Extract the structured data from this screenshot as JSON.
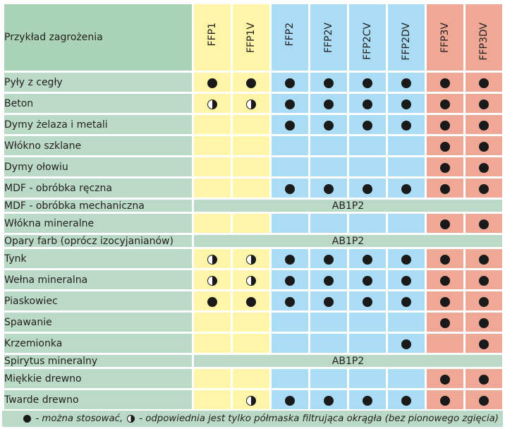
{
  "header": {
    "label": "Przykład zagrożenia",
    "columns": [
      "FFP1",
      "FFP1V",
      "FFP2",
      "FFP2V",
      "FFP2CV",
      "FFP2DV",
      "FFP3V",
      "FFP3DV"
    ]
  },
  "column_colors": [
    "y",
    "y",
    "b",
    "b",
    "b",
    "b",
    "r",
    "r"
  ],
  "colors": {
    "yellow": "#fff5a8",
    "blue": "#aadcf6",
    "red": "#f0a896",
    "green": "#bad9c6",
    "header_green": "#a9d2b6"
  },
  "symbols": {
    "F": "full-circle-icon",
    "H": "half-circle-icon",
    "": "empty"
  },
  "rows": [
    {
      "label": "Pyły z cegły",
      "cells": [
        "F",
        "F",
        "F",
        "F",
        "F",
        "F",
        "F",
        "F"
      ]
    },
    {
      "label": "Beton",
      "cells": [
        "H",
        "H",
        "F",
        "F",
        "F",
        "F",
        "F",
        "F"
      ]
    },
    {
      "label": "Dymy żelaza i metali",
      "cells": [
        "",
        "",
        "F",
        "F",
        "F",
        "F",
        "F",
        "F"
      ]
    },
    {
      "label": "Włókno szklane",
      "cells": [
        "",
        "",
        "",
        "",
        "",
        "",
        "F",
        "F"
      ]
    },
    {
      "label": "Dymy ołowiu",
      "cells": [
        "",
        "",
        "",
        "",
        "",
        "",
        "F",
        "F"
      ]
    },
    {
      "label": "MDF - obróbka ręczna",
      "cells": [
        "",
        "",
        "F",
        "F",
        "F",
        "F",
        "F",
        "F"
      ]
    },
    {
      "label": "MDF - obróbka mechaniczna",
      "span": "AB1P2"
    },
    {
      "label": "Włókna mineralne",
      "cells": [
        "",
        "",
        "",
        "",
        "",
        "",
        "F",
        "F"
      ]
    },
    {
      "label": "Opary farb (oprócz izocyjanianów)",
      "span": "AB1P2"
    },
    {
      "label": "Tynk",
      "cells": [
        "H",
        "H",
        "F",
        "F",
        "F",
        "F",
        "F",
        "F"
      ]
    },
    {
      "label": "Wełna mineralna",
      "cells": [
        "H",
        "H",
        "F",
        "F",
        "F",
        "F",
        "F",
        "F"
      ]
    },
    {
      "label": "Piaskowiec",
      "cells": [
        "F",
        "F",
        "F",
        "F",
        "F",
        "F",
        "F",
        "F"
      ]
    },
    {
      "label": "Spawanie",
      "cells": [
        "",
        "",
        "",
        "",
        "",
        "",
        "F",
        "F"
      ]
    },
    {
      "label": "Krzemionka",
      "cells": [
        "",
        "",
        "",
        "",
        "",
        "F",
        "",
        "F"
      ]
    },
    {
      "label": "Spirytus mineralny",
      "span": "AB1P2"
    },
    {
      "label": "Miękkie drewno",
      "cells": [
        "",
        "",
        "",
        "",
        "",
        "",
        "F",
        "F"
      ]
    },
    {
      "label": "Twarde drewno",
      "cells": [
        "",
        "H",
        "F",
        "F",
        "F",
        "F",
        "F",
        "F"
      ]
    }
  ],
  "legend": {
    "full_text": "- można stosować,",
    "half_text": "- odpowiednia jest tylko półmaska filtrująca okrągła (bez pionowego zgięcia)"
  }
}
